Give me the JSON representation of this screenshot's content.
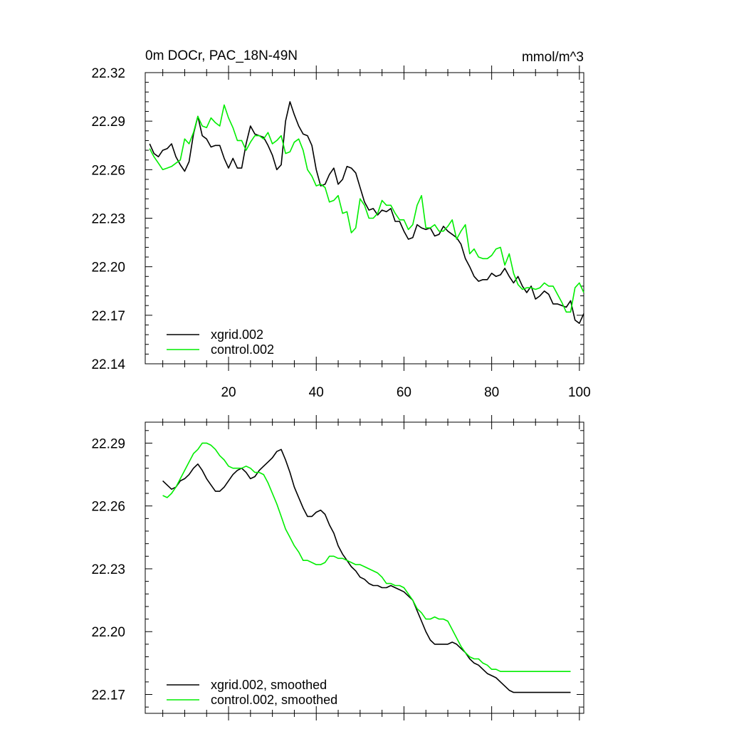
{
  "chart_data": [
    {
      "type": "line",
      "title": "0m DOCr, PAC_18N-49N",
      "units": "mmol/m^3",
      "xlabel": "",
      "ylabel": "",
      "xlim": [
        1,
        101
      ],
      "ylim": [
        22.14,
        22.32
      ],
      "xticks": [
        20,
        40,
        60,
        80,
        100
      ],
      "xtick_labels": [
        "20",
        "40",
        "60",
        "80",
        "100"
      ],
      "yticks": [
        22.14,
        22.17,
        22.2,
        22.23,
        22.26,
        22.29,
        22.32
      ],
      "ytick_labels": [
        "22.14",
        "22.17",
        "22.20",
        "22.23",
        "22.26",
        "22.29",
        "22.32"
      ],
      "legend_position": "bottom-left",
      "grid": false,
      "x": [
        2,
        3,
        4,
        5,
        6,
        7,
        8,
        9,
        10,
        11,
        12,
        13,
        14,
        15,
        16,
        17,
        18,
        19,
        20,
        21,
        22,
        23,
        24,
        25,
        26,
        27,
        28,
        29,
        30,
        31,
        32,
        33,
        34,
        35,
        36,
        37,
        38,
        39,
        40,
        41,
        42,
        43,
        44,
        45,
        46,
        47,
        48,
        49,
        50,
        51,
        52,
        53,
        54,
        55,
        56,
        57,
        58,
        59,
        60,
        61,
        62,
        63,
        64,
        65,
        66,
        67,
        68,
        69,
        70,
        71,
        72,
        73,
        74,
        75,
        76,
        77,
        78,
        79,
        80,
        81,
        82,
        83,
        84,
        85,
        86,
        87,
        88,
        89,
        90,
        91,
        92,
        93,
        94,
        95,
        96,
        97,
        98,
        99,
        100,
        101
      ],
      "series": [
        {
          "name": "xgrid.002",
          "color": "#000000",
          "values": [
            22.276,
            22.27,
            22.268,
            22.272,
            22.273,
            22.276,
            22.268,
            22.263,
            22.259,
            22.265,
            22.282,
            22.293,
            22.281,
            22.279,
            22.274,
            22.275,
            22.275,
            22.267,
            22.261,
            22.267,
            22.261,
            22.261,
            22.276,
            22.287,
            22.282,
            22.281,
            22.28,
            22.275,
            22.269,
            22.26,
            22.263,
            22.29,
            22.302,
            22.294,
            22.287,
            22.282,
            22.281,
            22.275,
            22.26,
            22.25,
            22.251,
            22.257,
            22.261,
            22.251,
            22.254,
            22.262,
            22.261,
            22.258,
            22.249,
            22.24,
            22.235,
            22.236,
            22.232,
            22.235,
            22.234,
            22.236,
            22.228,
            22.228,
            22.222,
            22.217,
            22.218,
            22.226,
            22.224,
            22.223,
            22.224,
            22.219,
            22.22,
            22.225,
            22.222,
            22.22,
            22.218,
            22.214,
            22.205,
            22.2,
            22.194,
            22.191,
            22.192,
            22.192,
            22.196,
            22.194,
            22.195,
            22.199,
            22.194,
            22.19,
            22.194,
            22.188,
            22.184,
            22.188,
            22.18,
            22.182,
            22.185,
            22.183,
            22.177,
            22.177,
            22.176,
            22.175,
            22.179,
            22.167,
            22.165,
            22.171
          ]
        },
        {
          "name": "control.002",
          "color": "#00ee00",
          "values": [
            22.273,
            22.268,
            22.264,
            22.26,
            22.261,
            22.262,
            22.264,
            22.266,
            22.279,
            22.276,
            22.283,
            22.293,
            22.287,
            22.286,
            22.292,
            22.289,
            22.287,
            22.3,
            22.292,
            22.286,
            22.278,
            22.278,
            22.272,
            22.277,
            22.281,
            22.281,
            22.279,
            22.283,
            22.276,
            22.278,
            22.281,
            22.27,
            22.271,
            22.277,
            22.279,
            22.272,
            22.26,
            22.256,
            22.25,
            22.251,
            22.249,
            22.24,
            22.241,
            22.244,
            22.233,
            22.234,
            22.221,
            22.224,
            22.242,
            22.238,
            22.23,
            22.23,
            22.233,
            22.241,
            22.238,
            22.238,
            22.233,
            22.229,
            22.229,
            22.223,
            22.226,
            22.238,
            22.244,
            22.224,
            22.224,
            22.226,
            22.222,
            22.222,
            22.225,
            22.229,
            22.217,
            22.222,
            22.226,
            22.208,
            22.211,
            22.206,
            22.205,
            22.205,
            22.207,
            22.211,
            22.212,
            22.201,
            22.208,
            22.196,
            22.189,
            22.186,
            22.187,
            22.187,
            22.186,
            22.187,
            22.19,
            22.188,
            22.188,
            22.183,
            22.178,
            22.172,
            22.172,
            22.187,
            22.19,
            22.184
          ]
        }
      ]
    },
    {
      "type": "line",
      "title": "",
      "xlabel": "",
      "ylabel": "",
      "xlim": [
        1,
        101
      ],
      "ylim": [
        22.161,
        22.3
      ],
      "xticks": [
        20,
        40,
        60,
        80,
        100
      ],
      "xtick_labels": [],
      "yticks": [
        22.17,
        22.2,
        22.23,
        22.26,
        22.29
      ],
      "ytick_labels": [
        "22.17",
        "22.20",
        "22.23",
        "22.26",
        "22.29"
      ],
      "legend_position": "bottom-left",
      "grid": false,
      "x": [
        5,
        6,
        7,
        8,
        9,
        10,
        11,
        12,
        13,
        14,
        15,
        16,
        17,
        18,
        19,
        20,
        21,
        22,
        23,
        24,
        25,
        26,
        27,
        28,
        29,
        30,
        31,
        32,
        33,
        34,
        35,
        36,
        37,
        38,
        39,
        40,
        41,
        42,
        43,
        44,
        45,
        46,
        47,
        48,
        49,
        50,
        51,
        52,
        53,
        54,
        55,
        56,
        57,
        58,
        59,
        60,
        61,
        62,
        63,
        64,
        65,
        66,
        67,
        68,
        69,
        70,
        71,
        72,
        73,
        74,
        75,
        76,
        77,
        78,
        79,
        80,
        81,
        82,
        83,
        84,
        85,
        86,
        87,
        88,
        89,
        90,
        91,
        92,
        93,
        94,
        95,
        96,
        97,
        98
      ],
      "series": [
        {
          "name": "xgrid.002, smoothed",
          "color": "#000000",
          "values": [
            22.272,
            22.27,
            22.268,
            22.269,
            22.272,
            22.273,
            22.275,
            22.278,
            22.28,
            22.277,
            22.273,
            22.27,
            22.267,
            22.267,
            22.269,
            22.272,
            22.275,
            22.277,
            22.278,
            22.276,
            22.273,
            22.274,
            22.277,
            22.279,
            22.281,
            22.283,
            22.286,
            22.287,
            22.282,
            22.276,
            22.269,
            22.264,
            22.259,
            22.255,
            22.255,
            22.257,
            22.258,
            22.256,
            22.251,
            22.247,
            22.241,
            22.237,
            22.234,
            22.231,
            22.229,
            22.226,
            22.225,
            22.223,
            22.222,
            22.222,
            22.221,
            22.221,
            22.222,
            22.221,
            22.22,
            22.219,
            22.217,
            22.215,
            22.21,
            22.205,
            22.2,
            22.196,
            22.194,
            22.194,
            22.194,
            22.194,
            22.195,
            22.194,
            22.192,
            22.19,
            22.187,
            22.185,
            22.184,
            22.182,
            22.18,
            22.179,
            22.178,
            22.176,
            22.174,
            22.172,
            22.171,
            22.171,
            22.171,
            22.171,
            22.171,
            22.171,
            22.171,
            22.171,
            22.171,
            22.171,
            22.171,
            22.171,
            22.171,
            22.171
          ]
        },
        {
          "name": "control.002, smoothed",
          "color": "#00ee00",
          "values": [
            22.265,
            22.264,
            22.266,
            22.269,
            22.273,
            22.277,
            22.281,
            22.285,
            22.287,
            22.29,
            22.29,
            22.289,
            22.287,
            22.284,
            22.282,
            22.279,
            22.278,
            22.278,
            22.278,
            22.279,
            22.278,
            22.276,
            22.276,
            22.275,
            22.271,
            22.266,
            22.261,
            22.255,
            22.249,
            22.245,
            22.241,
            22.238,
            22.234,
            22.234,
            22.233,
            22.232,
            22.232,
            22.233,
            22.236,
            22.236,
            22.235,
            22.235,
            22.234,
            22.233,
            22.232,
            22.232,
            22.231,
            22.23,
            22.229,
            22.228,
            22.226,
            22.223,
            22.223,
            22.222,
            22.222,
            22.221,
            22.218,
            22.215,
            22.211,
            22.209,
            22.206,
            22.206,
            22.207,
            22.206,
            22.206,
            22.205,
            22.201,
            22.197,
            22.193,
            22.19,
            22.188,
            22.187,
            22.187,
            22.185,
            22.184,
            22.182,
            22.182,
            22.181,
            22.181,
            22.181,
            22.181,
            22.181,
            22.181,
            22.181,
            22.181,
            22.181,
            22.181,
            22.181,
            22.181,
            22.181,
            22.181,
            22.181,
            22.181,
            22.181
          ]
        }
      ]
    }
  ]
}
